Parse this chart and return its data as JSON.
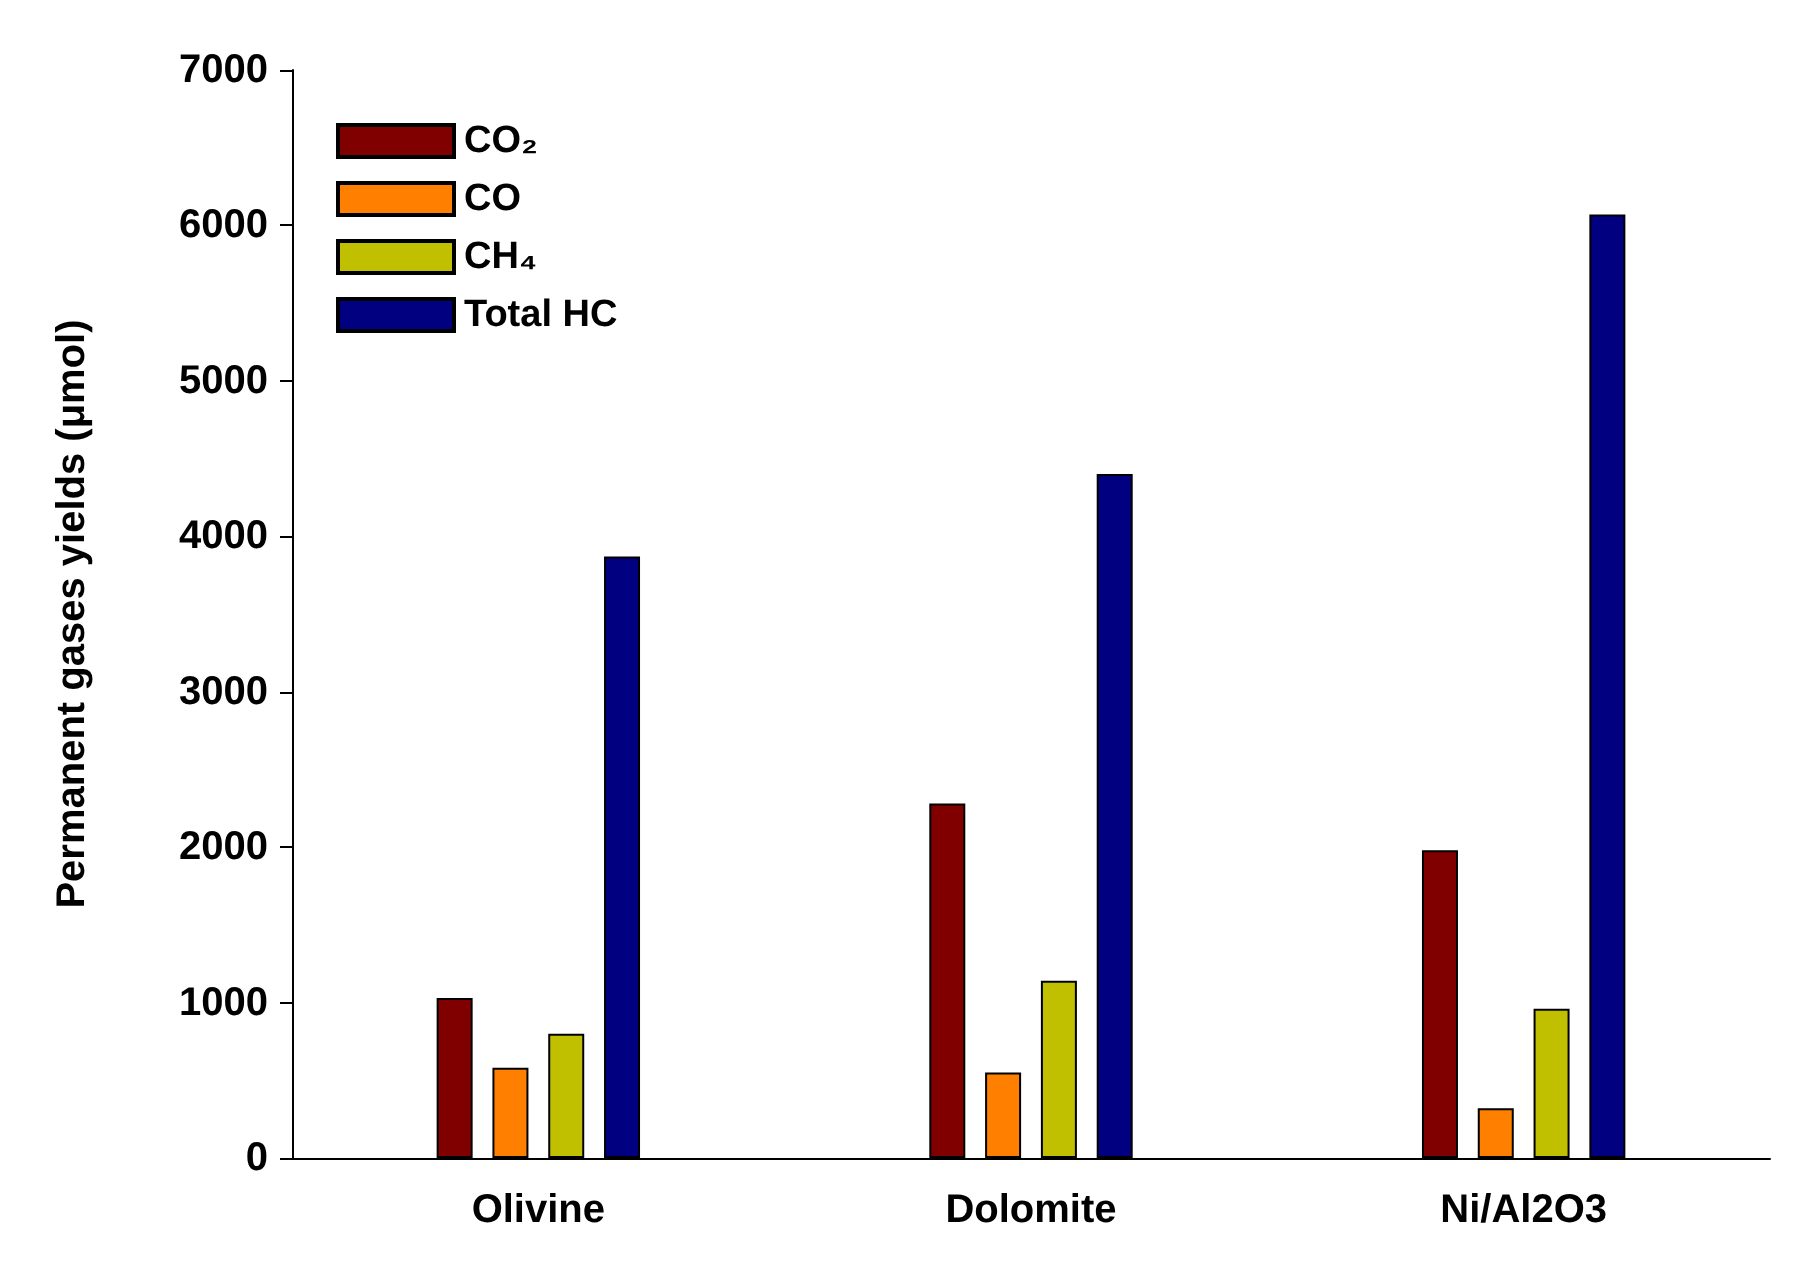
{
  "chart_data": {
    "type": "bar",
    "ylabel": "Permanent gases yields (μmol)",
    "categories": [
      "Olivine",
      "Dolomite",
      "Ni/Al2O3"
    ],
    "series": [
      {
        "name": "CO₂",
        "color": "#800000",
        "values": [
          1030,
          2280,
          1980
        ]
      },
      {
        "name": "CO",
        "color": "#ff8000",
        "values": [
          580,
          550,
          320
        ]
      },
      {
        "name": "CH₄",
        "color": "#c0c000",
        "values": [
          800,
          1140,
          960
        ]
      },
      {
        "name": "Total HC",
        "color": "#000080",
        "values": [
          3870,
          4400,
          6070
        ]
      }
    ],
    "ylim": [
      0,
      7000
    ],
    "yticks": [
      0,
      1000,
      2000,
      3000,
      4000,
      5000,
      6000,
      7000
    ],
    "grid": false,
    "legend": "top left"
  }
}
